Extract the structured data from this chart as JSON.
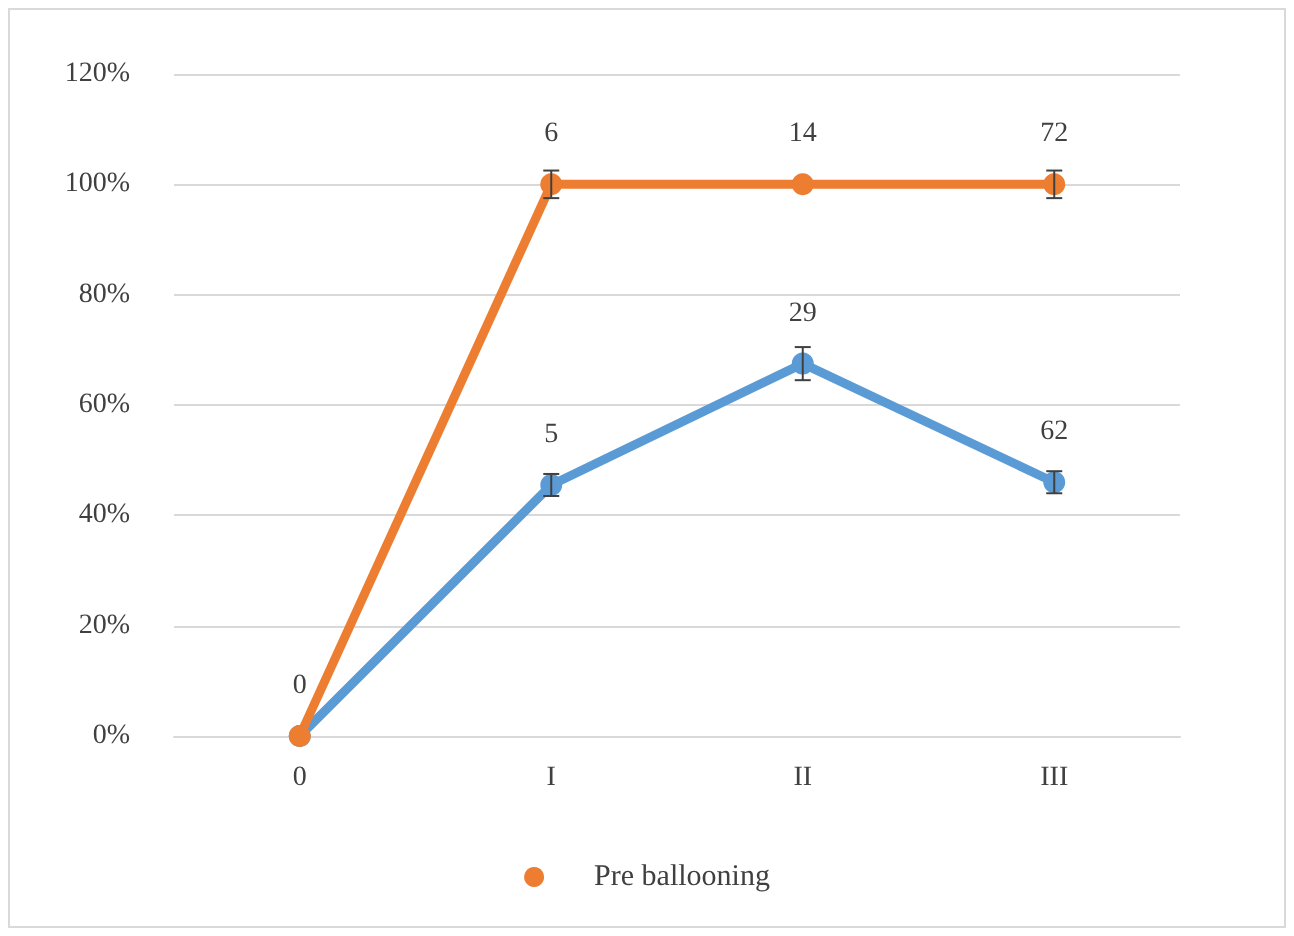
{
  "chart_data": {
    "type": "line",
    "categories": [
      "0",
      "I",
      "II",
      "III"
    ],
    "series": [
      {
        "color": "#5b9bd5",
        "values": [
          0,
          45.5,
          67.5,
          46
        ],
        "errors": [
          null,
          2,
          3,
          2
        ]
      },
      {
        "name": "Pre ballooning",
        "color": "#ed7d31",
        "values": [
          0,
          100,
          100,
          100
        ],
        "errors": [
          null,
          2.5,
          null,
          2.5
        ]
      }
    ],
    "annotations": [
      {
        "text": "0",
        "x": "0",
        "y": 0
      },
      {
        "text": "5",
        "x": "I",
        "y": 45.5
      },
      {
        "text": "29",
        "x": "II",
        "y": 67.5
      },
      {
        "text": "62",
        "x": "III",
        "y": 46
      },
      {
        "text": "6",
        "x": "I",
        "y": 100
      },
      {
        "text": "14",
        "x": "II",
        "y": 100
      },
      {
        "text": "72",
        "x": "III",
        "y": 100
      }
    ],
    "ylim": [
      0,
      120
    ],
    "yticks": [
      {
        "value": 0,
        "label": "0%"
      },
      {
        "value": 20,
        "label": "20%"
      },
      {
        "value": 40,
        "label": "40%"
      },
      {
        "value": 60,
        "label": "60%"
      },
      {
        "value": 80,
        "label": "80%"
      },
      {
        "value": 100,
        "label": "100%"
      },
      {
        "value": 120,
        "label": "120%"
      }
    ],
    "grid": "y",
    "legend": "bottom",
    "marker": "circle",
    "line_style": "solid"
  }
}
